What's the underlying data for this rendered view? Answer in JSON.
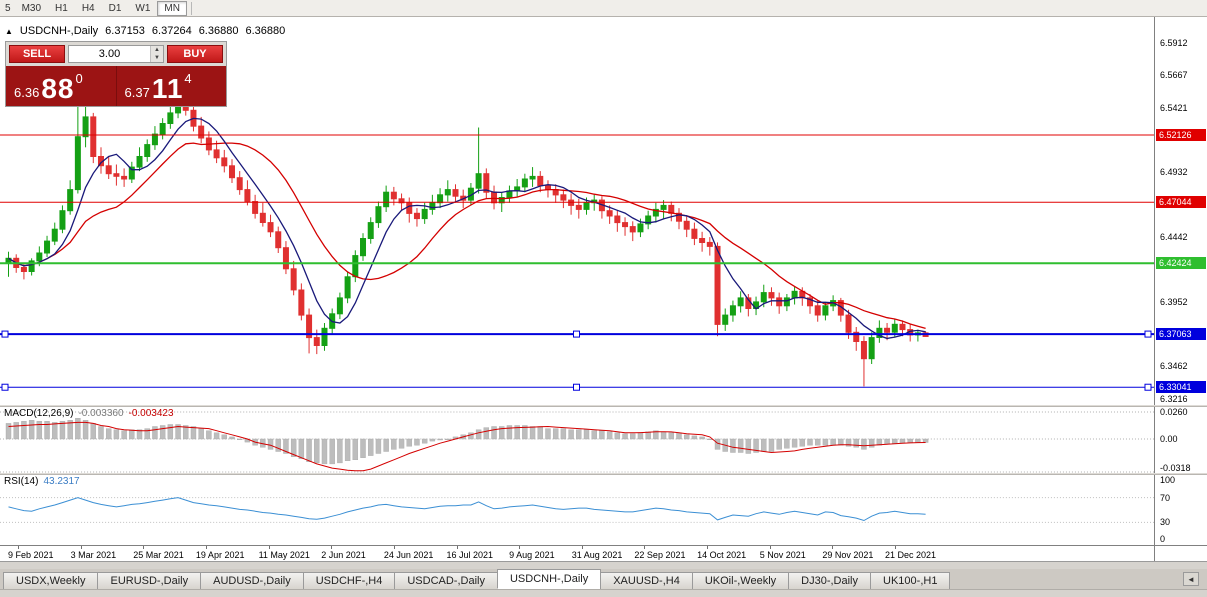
{
  "toolbar": {
    "timeframes": [
      "5",
      "M30",
      "H1",
      "H4",
      "D1",
      "W1",
      "MN"
    ],
    "active_timeframe": "MN"
  },
  "header": {
    "collapse_icon": "▲",
    "symbol": "USDCNH-,Daily",
    "open": "6.37153",
    "high": "6.37264",
    "low": "6.36880",
    "close": "6.36880"
  },
  "trade_widget": {
    "sell_label": "SELL",
    "buy_label": "BUY",
    "lot_value": "3.00",
    "spin_up_icon": "▲",
    "spin_down_icon": "▼",
    "sell_price": {
      "prefix": "6.36",
      "big": "88",
      "sup": "0"
    },
    "buy_price": {
      "prefix": "6.37",
      "big": "11",
      "sup": "4"
    }
  },
  "price_scale": {
    "ticks": [
      {
        "label": "6.5912",
        "value": 6.5912
      },
      {
        "label": "6.5667",
        "value": 6.5667
      },
      {
        "label": "6.5421",
        "value": 6.5421
      },
      {
        "label": "6.4932",
        "value": 6.4932
      },
      {
        "label": "6.4442",
        "value": 6.4442
      },
      {
        "label": "6.3952",
        "value": 6.3952
      },
      {
        "label": "6.3462",
        "value": 6.3462
      },
      {
        "label": "6.3216",
        "value": 6.3216
      }
    ],
    "badges": [
      {
        "label": "6.52126",
        "value": 6.52126,
        "color": "#e00000"
      },
      {
        "label": "6.47044",
        "value": 6.47044,
        "color": "#e00000"
      },
      {
        "label": "6.42424",
        "value": 6.42424,
        "color": "#2fbe2f"
      },
      {
        "label": "6.37063",
        "value": 6.37063,
        "color": "#0000dd"
      },
      {
        "label": "6.33041",
        "value": 6.33041,
        "color": "#0000dd"
      }
    ]
  },
  "macd_panel": {
    "name": "MACD(12,26,9)",
    "value_main": "-0.003360",
    "value_signal": "-0.003423",
    "scale": [
      {
        "label": "0.0260",
        "value": 0.026
      },
      {
        "label": "0.00",
        "value": 0
      },
      {
        "label": "-0.0318",
        "value": -0.0318
      }
    ]
  },
  "rsi_panel": {
    "name": "RSI(14)",
    "value": "43.2317",
    "scale": [
      {
        "label": "100",
        "value": 100
      },
      {
        "label": "70",
        "value": 70
      },
      {
        "label": "30",
        "value": 30
      },
      {
        "label": "0",
        "value": 0
      }
    ]
  },
  "date_axis": {
    "labels": [
      "9 Feb 2021",
      "3 Mar 2021",
      "25 Mar 2021",
      "19 Apr 2021",
      "11 May 2021",
      "2 Jun 2021",
      "24 Jun 2021",
      "16 Jul 2021",
      "9 Aug 2021",
      "31 Aug 2021",
      "22 Sep 2021",
      "14 Oct 2021",
      "5 Nov 2021",
      "29 Nov 2021",
      "21 Dec 2021"
    ]
  },
  "tabs": {
    "items": [
      "USDX,Weekly",
      "EURUSD-,Daily",
      "AUDUSD-,Daily",
      "USDCHF-,H4",
      "USDCAD-,Daily",
      "USDCNH-,Daily",
      "XAUUSD-,H4",
      "UKOil-,Weekly",
      "DJ30-,Daily",
      "UK100-,H1"
    ],
    "active": "USDCNH-,Daily",
    "scroll_left_icon": "◄"
  },
  "chart_data": {
    "type": "candlestick",
    "title": "USDCNH-,Daily",
    "ylim": [
      6.3215,
      6.6
    ],
    "up_color": "#14a014",
    "down_color": "#e03030",
    "candles": [
      [
        6.425,
        6.433,
        6.414,
        6.428
      ],
      [
        6.428,
        6.431,
        6.417,
        6.421
      ],
      [
        6.421,
        6.424,
        6.412,
        6.418
      ],
      [
        6.418,
        6.428,
        6.415,
        6.426
      ],
      [
        6.426,
        6.437,
        6.422,
        6.432
      ],
      [
        6.432,
        6.445,
        6.429,
        6.441
      ],
      [
        6.441,
        6.455,
        6.438,
        6.45
      ],
      [
        6.45,
        6.468,
        6.447,
        6.464
      ],
      [
        6.464,
        6.487,
        6.461,
        6.48
      ],
      [
        6.48,
        6.544,
        6.477,
        6.52
      ],
      [
        6.52,
        6.545,
        6.512,
        6.535
      ],
      [
        6.535,
        6.538,
        6.5,
        6.505
      ],
      [
        6.505,
        6.512,
        6.492,
        6.498
      ],
      [
        6.498,
        6.505,
        6.488,
        6.492
      ],
      [
        6.492,
        6.499,
        6.483,
        6.49
      ],
      [
        6.49,
        6.496,
        6.482,
        6.488
      ],
      [
        6.488,
        6.501,
        6.485,
        6.497
      ],
      [
        6.497,
        6.512,
        6.494,
        6.505
      ],
      [
        6.505,
        6.518,
        6.501,
        6.514
      ],
      [
        6.514,
        6.528,
        6.51,
        6.522
      ],
      [
        6.522,
        6.534,
        6.518,
        6.53
      ],
      [
        6.53,
        6.543,
        6.526,
        6.538
      ],
      [
        6.538,
        6.549,
        6.534,
        6.545
      ],
      [
        6.545,
        6.548,
        6.536,
        6.54
      ],
      [
        6.54,
        6.543,
        6.524,
        6.528
      ],
      [
        6.528,
        6.535,
        6.515,
        6.519
      ],
      [
        6.519,
        6.524,
        6.506,
        6.51
      ],
      [
        6.51,
        6.517,
        6.5,
        6.504
      ],
      [
        6.504,
        6.51,
        6.493,
        6.498
      ],
      [
        6.498,
        6.503,
        6.485,
        6.489
      ],
      [
        6.489,
        6.494,
        6.476,
        6.48
      ],
      [
        6.48,
        6.487,
        6.468,
        6.471
      ],
      [
        6.471,
        6.476,
        6.458,
        6.462
      ],
      [
        6.462,
        6.47,
        6.452,
        6.455
      ],
      [
        6.455,
        6.461,
        6.444,
        6.448
      ],
      [
        6.448,
        6.452,
        6.432,
        6.436
      ],
      [
        6.436,
        6.441,
        6.416,
        6.42
      ],
      [
        6.42,
        6.426,
        6.4,
        6.404
      ],
      [
        6.404,
        6.409,
        6.381,
        6.385
      ],
      [
        6.385,
        6.39,
        6.356,
        6.368
      ],
      [
        6.368,
        6.374,
        6.3555,
        6.362
      ],
      [
        6.362,
        6.379,
        6.358,
        6.375
      ],
      [
        6.375,
        6.39,
        6.371,
        6.386
      ],
      [
        6.386,
        6.402,
        6.382,
        6.398
      ],
      [
        6.398,
        6.418,
        6.394,
        6.414
      ],
      [
        6.414,
        6.434,
        6.41,
        6.43
      ],
      [
        6.43,
        6.447,
        6.426,
        6.443
      ],
      [
        6.443,
        6.459,
        6.439,
        6.455
      ],
      [
        6.455,
        6.471,
        6.451,
        6.467
      ],
      [
        6.467,
        6.483,
        6.463,
        6.478
      ],
      [
        6.478,
        6.482,
        6.468,
        6.473
      ],
      [
        6.473,
        6.477,
        6.464,
        6.47
      ],
      [
        6.47,
        6.474,
        6.455,
        6.462
      ],
      [
        6.462,
        6.466,
        6.452,
        6.458
      ],
      [
        6.458,
        6.47,
        6.454,
        6.465
      ],
      [
        6.465,
        6.476,
        6.461,
        6.47
      ],
      [
        6.47,
        6.481,
        6.466,
        6.476
      ],
      [
        6.476,
        6.487,
        6.471,
        6.48
      ],
      [
        6.48,
        6.484,
        6.47,
        6.475
      ],
      [
        6.475,
        6.48,
        6.466,
        6.472
      ],
      [
        6.472,
        6.485,
        6.468,
        6.481
      ],
      [
        6.481,
        6.527,
        6.477,
        6.492
      ],
      [
        6.492,
        6.496,
        6.473,
        6.478
      ],
      [
        6.478,
        6.483,
        6.465,
        6.47
      ],
      [
        6.47,
        6.478,
        6.463,
        6.474
      ],
      [
        6.474,
        6.483,
        6.47,
        6.479
      ],
      [
        6.479,
        6.488,
        6.474,
        6.482
      ],
      [
        6.482,
        6.492,
        6.478,
        6.488
      ],
      [
        6.488,
        6.497,
        6.482,
        6.49
      ],
      [
        6.49,
        6.494,
        6.478,
        6.483
      ],
      [
        6.483,
        6.487,
        6.474,
        6.48
      ],
      [
        6.48,
        6.484,
        6.47,
        6.476
      ],
      [
        6.476,
        6.48,
        6.466,
        6.472
      ],
      [
        6.472,
        6.477,
        6.461,
        6.468
      ],
      [
        6.468,
        6.473,
        6.458,
        6.465
      ],
      [
        6.465,
        6.474,
        6.461,
        6.47
      ],
      [
        6.47,
        6.476,
        6.464,
        6.472
      ],
      [
        6.472,
        6.475,
        6.458,
        6.464
      ],
      [
        6.464,
        6.468,
        6.454,
        6.46
      ],
      [
        6.46,
        6.464,
        6.448,
        6.455
      ],
      [
        6.455,
        6.459,
        6.445,
        6.452
      ],
      [
        6.452,
        6.456,
        6.441,
        6.448
      ],
      [
        6.448,
        6.458,
        6.444,
        6.454
      ],
      [
        6.454,
        6.464,
        6.45,
        6.46
      ],
      [
        6.46,
        6.47,
        6.455,
        6.465
      ],
      [
        6.465,
        6.472,
        6.458,
        6.468
      ],
      [
        6.468,
        6.471,
        6.456,
        6.462
      ],
      [
        6.462,
        6.466,
        6.45,
        6.456
      ],
      [
        6.456,
        6.46,
        6.444,
        6.45
      ],
      [
        6.45,
        6.455,
        6.438,
        6.443
      ],
      [
        6.443,
        6.448,
        6.433,
        6.44
      ],
      [
        6.44,
        6.444,
        6.43,
        6.437
      ],
      [
        6.437,
        6.44,
        6.369,
        6.378
      ],
      [
        6.378,
        6.39,
        6.373,
        6.385
      ],
      [
        6.385,
        6.396,
        6.38,
        6.392
      ],
      [
        6.392,
        6.403,
        6.387,
        6.398
      ],
      [
        6.398,
        6.401,
        6.384,
        6.39
      ],
      [
        6.39,
        6.399,
        6.385,
        6.395
      ],
      [
        6.395,
        6.408,
        6.391,
        6.402
      ],
      [
        6.402,
        6.406,
        6.392,
        6.398
      ],
      [
        6.398,
        6.402,
        6.386,
        6.392
      ],
      [
        6.392,
        6.401,
        6.388,
        6.398
      ],
      [
        6.398,
        6.407,
        6.393,
        6.403
      ],
      [
        6.403,
        6.406,
        6.392,
        6.398
      ],
      [
        6.398,
        6.401,
        6.386,
        6.392
      ],
      [
        6.392,
        6.396,
        6.38,
        6.385
      ],
      [
        6.385,
        6.395,
        6.381,
        6.392
      ],
      [
        6.392,
        6.4,
        6.388,
        6.396
      ],
      [
        6.396,
        6.398,
        6.38,
        6.385
      ],
      [
        6.385,
        6.389,
        6.367,
        6.372
      ],
      [
        6.372,
        6.376,
        6.358,
        6.365
      ],
      [
        6.365,
        6.369,
        6.331,
        6.352
      ],
      [
        6.352,
        6.372,
        6.348,
        6.368
      ],
      [
        6.368,
        6.381,
        6.364,
        6.375
      ],
      [
        6.375,
        6.379,
        6.366,
        6.372
      ],
      [
        6.372,
        6.382,
        6.368,
        6.378
      ],
      [
        6.378,
        6.381,
        6.369,
        6.374
      ],
      [
        6.374,
        6.378,
        6.365,
        6.37
      ],
      [
        6.37,
        6.374,
        6.365,
        6.3715
      ],
      [
        6.37153,
        6.37264,
        6.3688,
        6.3688
      ]
    ],
    "hlines": [
      {
        "price": 6.52126,
        "color": "#e00000",
        "width": 1,
        "selected": false
      },
      {
        "price": 6.47044,
        "color": "#e00000",
        "width": 1,
        "selected": false
      },
      {
        "price": 6.42424,
        "color": "#2fbe2f",
        "width": 2,
        "selected": false
      },
      {
        "price": 6.37063,
        "color": "#0000dd",
        "width": 2,
        "selected": true
      },
      {
        "price": 6.33041,
        "color": "#0000dd",
        "width": 1,
        "selected": true
      }
    ],
    "moving_averages": [
      {
        "period": 15,
        "color": "#d40000"
      },
      {
        "period": 6,
        "color": "#19197a"
      }
    ],
    "indicators": {
      "macd": {
        "params": "12,26,9",
        "ylim": [
          -0.0318,
          0.026
        ],
        "hist_color": "#bdbdbd",
        "signal_color": "#d40000",
        "hist": [
          0.015,
          0.016,
          0.017,
          0.018,
          0.017,
          0.017,
          0.016,
          0.017,
          0.018,
          0.02,
          0.018,
          0.015,
          0.012,
          0.01,
          0.009,
          0.008,
          0.009,
          0.009,
          0.01,
          0.012,
          0.013,
          0.014,
          0.014,
          0.013,
          0.012,
          0.01,
          0.008,
          0.006,
          0.004,
          0.002,
          0.0,
          -0.003,
          -0.006,
          -0.008,
          -0.01,
          -0.012,
          -0.014,
          -0.017,
          -0.019,
          -0.022,
          -0.023,
          -0.024,
          -0.024,
          -0.023,
          -0.021,
          -0.02,
          -0.018,
          -0.016,
          -0.014,
          -0.012,
          -0.01,
          -0.009,
          -0.007,
          -0.006,
          -0.004,
          -0.002,
          -0.001,
          0.0,
          0.002,
          0.004,
          0.006,
          0.009,
          0.011,
          0.012,
          0.012,
          0.013,
          0.013,
          0.013,
          0.012,
          0.012,
          0.01,
          0.01,
          0.01,
          0.009,
          0.009,
          0.009,
          0.008,
          0.008,
          0.007,
          0.006,
          0.005,
          0.005,
          0.006,
          0.007,
          0.008,
          0.007,
          0.006,
          0.006,
          0.004,
          0.003,
          0.002,
          0.0,
          -0.01,
          -0.012,
          -0.013,
          -0.013,
          -0.014,
          -0.013,
          -0.012,
          -0.012,
          -0.01,
          -0.009,
          -0.008,
          -0.007,
          -0.006,
          -0.006,
          -0.006,
          -0.006,
          -0.006,
          -0.007,
          -0.008,
          -0.01,
          -0.008,
          -0.006,
          -0.005,
          -0.004,
          -0.004,
          -0.0035,
          -0.0034,
          -0.0034
        ],
        "signal": [
          0.012,
          0.0125,
          0.013,
          0.0135,
          0.014,
          0.014,
          0.0145,
          0.015,
          0.0155,
          0.016,
          0.016,
          0.015,
          0.013,
          0.012,
          0.01,
          0.009,
          0.0085,
          0.008,
          0.008,
          0.009,
          0.01,
          0.011,
          0.012,
          0.0115,
          0.011,
          0.0105,
          0.01,
          0.008,
          0.006,
          0.004,
          0.002,
          0.0,
          -0.003,
          -0.0045,
          -0.006,
          -0.009,
          -0.012,
          -0.015,
          -0.018,
          -0.021,
          -0.024,
          -0.026,
          -0.028,
          -0.029,
          -0.03,
          -0.0305,
          -0.0305,
          -0.029,
          -0.026,
          -0.023,
          -0.02,
          -0.017,
          -0.014,
          -0.0115,
          -0.009,
          -0.0065,
          -0.004,
          -0.002,
          0.0,
          0.002,
          0.004,
          0.006,
          0.0075,
          0.009,
          0.01,
          0.0105,
          0.011,
          0.0112,
          0.0115,
          0.0118,
          0.012,
          0.0115,
          0.011,
          0.0105,
          0.01,
          0.0095,
          0.009,
          0.0085,
          0.008,
          0.007,
          0.006,
          0.006,
          0.0062,
          0.0065,
          0.007,
          0.007,
          0.0068,
          0.006,
          0.005,
          0.0045,
          0.004,
          0.002,
          -0.004,
          -0.006,
          -0.008,
          -0.009,
          -0.01,
          -0.011,
          -0.012,
          -0.013,
          -0.0125,
          -0.012,
          -0.0115,
          -0.01,
          -0.009,
          -0.008,
          -0.007,
          -0.006,
          -0.0055,
          -0.0055,
          -0.006,
          -0.0065,
          -0.006,
          -0.0055,
          -0.005,
          -0.0045,
          -0.004,
          -0.0038,
          -0.0035,
          -0.0034
        ]
      },
      "rsi": {
        "period": 14,
        "ylim": [
          0,
          100
        ],
        "levels": [
          70,
          30
        ],
        "color": "#3b8fd4",
        "values": [
          55,
          52,
          49,
          48,
          52,
          55,
          58,
          62,
          66,
          70,
          66,
          62,
          59,
          57,
          55,
          57,
          59,
          60,
          62,
          64,
          66,
          68,
          70,
          66,
          62,
          60,
          58,
          57,
          55,
          53,
          51,
          50,
          48,
          46,
          45,
          43,
          42,
          40,
          38,
          36,
          35,
          37,
          40,
          43,
          47,
          50,
          53,
          55,
          58,
          59,
          57,
          55,
          54,
          53,
          52,
          54,
          56,
          57,
          57,
          58,
          58,
          63,
          57,
          52,
          53,
          55,
          56,
          57,
          58,
          56,
          54,
          52,
          51,
          52,
          53,
          53,
          51,
          50,
          49,
          48,
          47,
          47,
          49,
          51,
          53,
          52,
          50,
          49,
          47,
          46,
          45,
          44,
          34,
          38,
          42,
          41,
          40,
          44,
          47,
          45,
          43,
          46,
          48,
          46,
          44,
          42,
          47,
          46,
          41,
          39,
          37,
          33,
          40,
          45,
          46,
          48,
          46,
          44,
          44,
          43.23
        ]
      }
    }
  }
}
